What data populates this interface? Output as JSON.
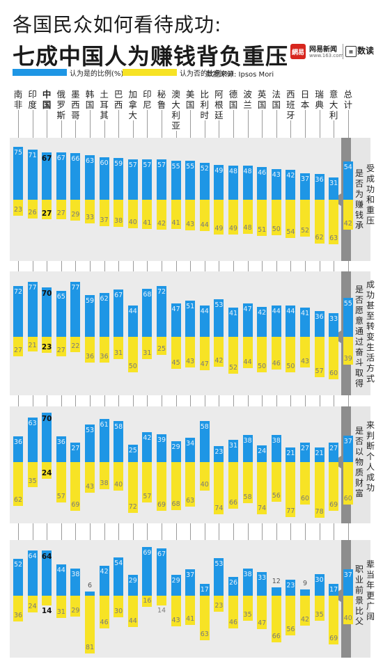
{
  "header": {
    "title_line1": "各国民众如何看待成功:",
    "title_line2": "七成中国人为赚钱背负重压"
  },
  "brand": {
    "logo_text": "網易",
    "name": "网易新闻",
    "url": "www.163.com",
    "data_icon": "data-icon",
    "section": "数读"
  },
  "legend": {
    "yes_label": "认为是的比例(%)",
    "no_label": "认为否的比例(%)",
    "source": "数据来源: Ipsos Mori"
  },
  "colors": {
    "yes": "#1e96e5",
    "no": "#f7e325",
    "panel": "#ebebeb",
    "ribbon": "#8d8d8d"
  },
  "chart_data": {
    "type": "bar",
    "title": "各国民众如何看待成功",
    "categories": [
      "南非",
      "印度",
      "中国",
      "俄罗斯",
      "墨西哥",
      "韩国",
      "土耳其",
      "巴西",
      "加拿大",
      "印尼",
      "秘鲁",
      "澳大利亚",
      "美国",
      "比利时",
      "阿根廷",
      "德国",
      "波兰",
      "英国",
      "法国",
      "西班牙",
      "日本",
      "瑞典",
      "意大利",
      "总计"
    ],
    "highlight_category": "中国",
    "charts": [
      {
        "question": "是否为赚钱承受成功和重压",
        "series": [
          {
            "name": "认为是的比例(%)",
            "values": [
              75,
              71,
              67,
              67,
              66,
              63,
              60,
              59,
              57,
              57,
              57,
              55,
              55,
              52,
              49,
              48,
              48,
              46,
              43,
              42,
              37,
              36,
              31,
              54
            ]
          },
          {
            "name": "认为否的比例(%)",
            "values": [
              23,
              26,
              27,
              27,
              29,
              33,
              37,
              38,
              40,
              41,
              42,
              41,
              43,
              44,
              49,
              49,
              48,
              51,
              50,
              54,
              52,
              62,
              63,
              42
            ]
          }
        ]
      },
      {
        "question": "是否愿意通过奋斗取得成功甚至转变生活方式",
        "series": [
          {
            "name": "认为是的比例(%)",
            "values": [
              72,
              77,
              70,
              65,
              77,
              59,
              62,
              67,
              44,
              68,
              72,
              47,
              51,
              44,
              53,
              41,
              47,
              42,
              44,
              44,
              41,
              36,
              33,
              55
            ]
          },
          {
            "name": "认为否的比例(%)",
            "values": [
              27,
              21,
              23,
              27,
              22,
              36,
              36,
              31,
              50,
              31,
              25,
              45,
              43,
              47,
              42,
              52,
              44,
              50,
              46,
              50,
              43,
              57,
              60,
              39
            ]
          }
        ]
      },
      {
        "question": "是否以物质财富来判断个人成功",
        "series": [
          {
            "name": "认为是的比例(%)",
            "values": [
              36,
              63,
              70,
              36,
              27,
              53,
              61,
              58,
              25,
              42,
              39,
              29,
              34,
              58,
              23,
              31,
              38,
              24,
              38,
              21,
              27,
              21,
              27,
              37
            ]
          },
          {
            "name": "认为否的比例(%)",
            "values": [
              62,
              35,
              24,
              57,
              69,
              43,
              38,
              40,
              72,
              57,
              69,
              68,
              63,
              40,
              74,
              66,
              58,
              74,
              56,
              77,
              60,
              78,
              69,
              60
            ]
          }
        ]
      },
      {
        "question": "职业前景比父辈当年更广阔",
        "series": [
          {
            "name": "认为是的比例(%)",
            "values": [
              52,
              64,
              64,
              44,
              38,
              6,
              42,
              54,
              29,
              69,
              67,
              29,
              37,
              17,
              53,
              26,
              38,
              33,
              12,
              23,
              9,
              30,
              17,
              37
            ]
          },
          {
            "name": "认为否的比例(%)",
            "values": [
              36,
              24,
              14,
              31,
              29,
              81,
              46,
              30,
              44,
              16,
              14,
              43,
              41,
              63,
              23,
              46,
              35,
              47,
              66,
              56,
              42,
              35,
              69,
              40
            ]
          }
        ]
      }
    ]
  }
}
